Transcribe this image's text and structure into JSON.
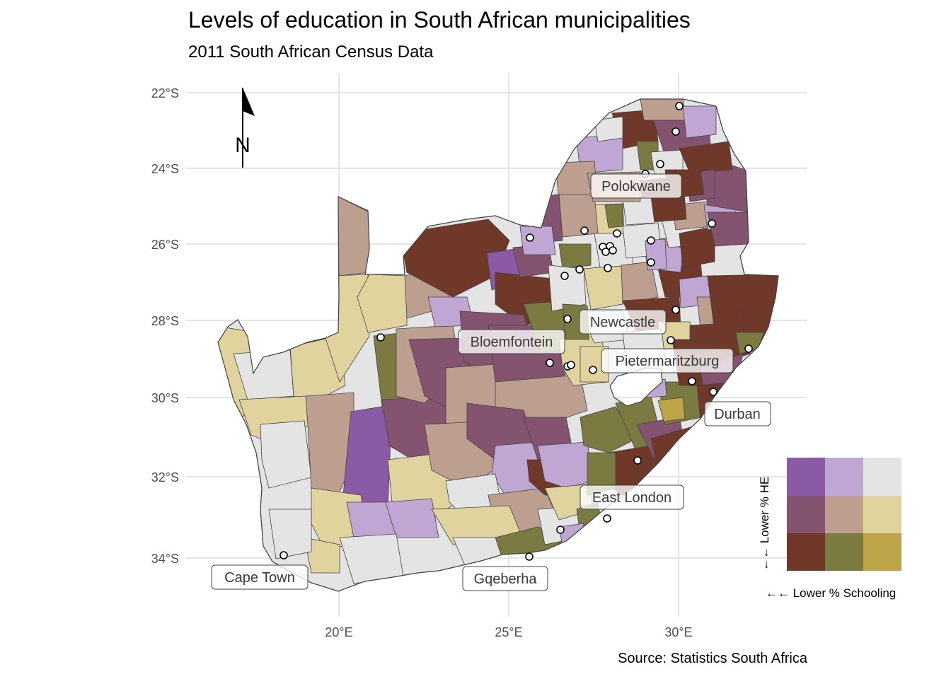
{
  "title": "Levels of education in South African municipalities",
  "subtitle": "2011 South African Census Data",
  "caption": "Source: Statistics South Africa",
  "north_arrow_label": "N",
  "axes": {
    "y_ticks": [
      "22°S",
      "24°S",
      "26°S",
      "28°S",
      "30°S",
      "32°S",
      "34°S"
    ],
    "x_ticks": [
      "20°E",
      "25°E",
      "30°E"
    ]
  },
  "cities": [
    {
      "name": "Polokwane",
      "lon": 29.45,
      "lat": -23.9
    },
    {
      "name": "Newcastle",
      "lon": 29.93,
      "lat": -27.75
    },
    {
      "name": "Bloemfontein",
      "lon": 26.2,
      "lat": -29.1
    },
    {
      "name": "Pietermaritzburg",
      "lon": 30.4,
      "lat": -29.6
    },
    {
      "name": "Durban",
      "lon": 31.0,
      "lat": -29.85
    },
    {
      "name": "East London",
      "lon": 27.9,
      "lat": -33.0
    },
    {
      "name": "Cape Town",
      "lon": 18.42,
      "lat": -33.92
    },
    {
      "name": "Gqeberha",
      "lon": 25.6,
      "lat": -33.96
    }
  ],
  "legend": {
    "y_title": "←← Lower % HE",
    "x_title": "←← Lower % Schooling",
    "colors": [
      [
        "#8a5aa5",
        "#c0a6d2",
        "#e4e4e4"
      ],
      [
        "#83536f",
        "#bd9f90",
        "#e0d39e"
      ],
      [
        "#6f3828",
        "#7a7a41",
        "#bda448"
      ]
    ]
  },
  "category_colors": {
    "low_he_low_school": "#6f3828",
    "low_he_mid_school": "#7a7a41",
    "low_he_high_school": "#bda448",
    "mid_he_low_school": "#83536f",
    "mid_he_mid_school": "#bd9f90",
    "mid_he_high_school": "#e0d39e",
    "high_he_low_school": "#8a5aa5",
    "high_he_mid_school": "#c0a6d2",
    "high_he_high_school": "#e4e4e4"
  }
}
